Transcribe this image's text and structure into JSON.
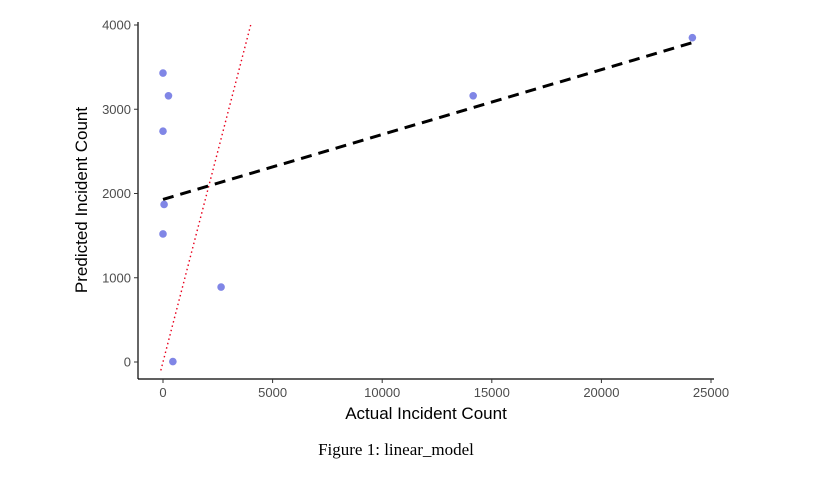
{
  "chart_data": {
    "type": "scatter",
    "xlabel": "Actual Incident Count",
    "ylabel": "Predicted Incident Count",
    "xlim": [
      -1000,
      25000
    ],
    "ylim": [
      -200,
      4000
    ],
    "x_ticks": [
      0,
      5000,
      10000,
      15000,
      20000,
      25000
    ],
    "x_tick_labels": [
      "0",
      "5000",
      "10000",
      "15000",
      "20000",
      "25000"
    ],
    "y_ticks": [
      0,
      1000,
      2000,
      3000,
      4000
    ],
    "y_tick_labels": [
      "0",
      "1000",
      "2000",
      "3000",
      "4000"
    ],
    "grid": false,
    "points": [
      {
        "x": 0,
        "y": 3430
      },
      {
        "x": 250,
        "y": 3160
      },
      {
        "x": 0,
        "y": 2740
      },
      {
        "x": 50,
        "y": 1870
      },
      {
        "x": 0,
        "y": 1520
      },
      {
        "x": 2650,
        "y": 890
      },
      {
        "x": 450,
        "y": 5
      },
      {
        "x": 14150,
        "y": 3160
      },
      {
        "x": 24150,
        "y": 3850
      }
    ],
    "fit_line": {
      "x": [
        0,
        24150
      ],
      "y": [
        1930,
        3790
      ]
    },
    "identity_line": {
      "x": [
        -100,
        4000
      ],
      "y": [
        -100,
        4000
      ]
    },
    "colors": {
      "points": "#8086e6",
      "fit_line": "#000000",
      "identity_line": "#e8001c"
    }
  },
  "caption": "Figure 1: linear_model"
}
